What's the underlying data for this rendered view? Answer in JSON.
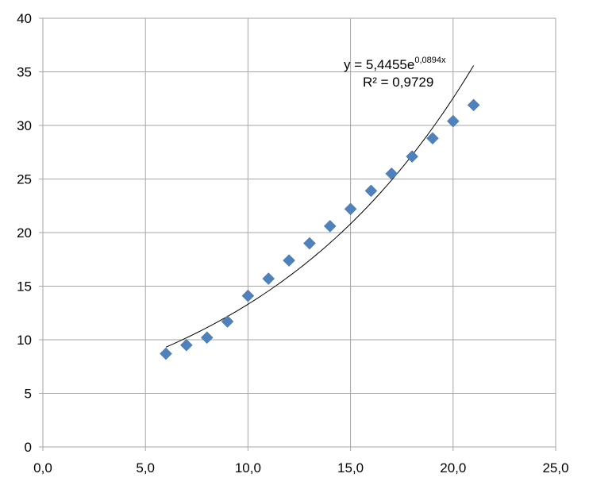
{
  "chart_data": {
    "type": "scatter",
    "title": "",
    "xlabel": "",
    "ylabel": "",
    "xlim": [
      0,
      25
    ],
    "ylim": [
      0,
      40
    ],
    "x_ticks": [
      "0,0",
      "5,0",
      "10,0",
      "15,0",
      "20,0",
      "25,0"
    ],
    "y_ticks": [
      "0",
      "5",
      "10",
      "15",
      "20",
      "25",
      "30",
      "35",
      "40"
    ],
    "grid": true,
    "legend": "none",
    "marker_color": "#4f81bd",
    "series": [
      {
        "marker": "diamond",
        "x": [
          6,
          7,
          8,
          9,
          10,
          11,
          12,
          13,
          14,
          15,
          16,
          17,
          18,
          19,
          20,
          21
        ],
        "y": [
          8.7,
          9.5,
          10.2,
          11.7,
          14.1,
          15.7,
          17.4,
          19.0,
          20.6,
          22.2,
          23.9,
          25.5,
          27.1,
          28.8,
          30.4,
          31.9
        ]
      }
    ],
    "trendline": {
      "type": "exponential",
      "a": 5.4455,
      "b": 0.0894,
      "x_range": [
        6,
        21
      ],
      "equation_base": "y = 5,4455e",
      "equation_exponent": "0,0894x",
      "r_squared": "R² = 0,9729"
    }
  }
}
